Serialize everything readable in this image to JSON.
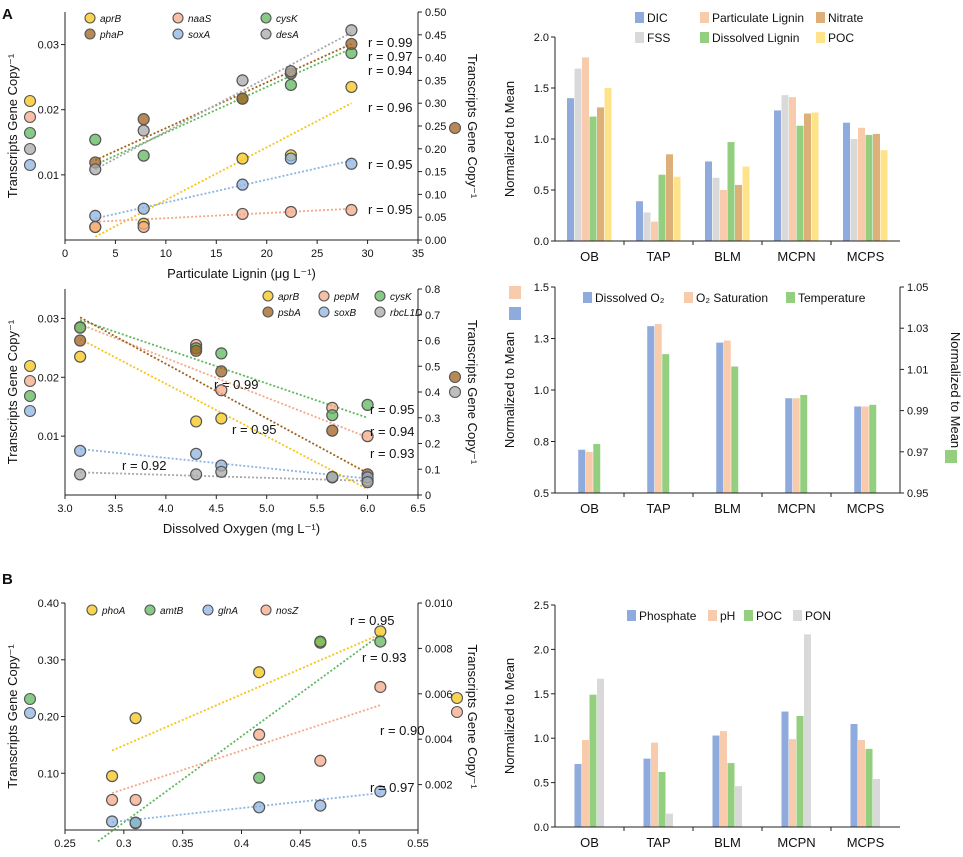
{
  "panel_labels": {
    "a": "A",
    "b": "B"
  },
  "chart_data": [
    {
      "id": "a1",
      "type": "scatter",
      "xlabel": "Particulate Lignin (μg L⁻¹)",
      "ylabel_left": "Transcripts Gene Copy⁻¹",
      "ylabel_right": "Transcripts Gene Copy⁻¹",
      "xlim": [
        0,
        35
      ],
      "ylim_left": [
        0,
        0.035
      ],
      "ylim_right": [
        0,
        0.5
      ],
      "xticks": [
        "0",
        "5",
        "10",
        "15",
        "20",
        "25",
        "30",
        "35"
      ],
      "yticks_left": [
        "0.01",
        "0.02",
        "0.03"
      ],
      "yticks_right": [
        "0.00",
        "0.05",
        "0.10",
        "0.15",
        "0.20",
        "0.25",
        "0.30",
        "0.35",
        "0.40",
        "0.45",
        "0.50"
      ],
      "series": [
        {
          "name": "aprB",
          "color": "#F5C518",
          "axis": "left",
          "x": [
            3,
            7.8,
            17.6,
            22.4,
            28.4
          ],
          "y": [
            0.002,
            0.0025,
            0.0125,
            0.013,
            0.0235
          ],
          "r": "r = 0.96",
          "fit": [
            [
              3,
              0.0005
            ],
            [
              28.4,
              0.021
            ]
          ]
        },
        {
          "name": "naaS",
          "color": "#F5A888",
          "axis": "left",
          "x": [
            3,
            7.8,
            17.6,
            22.4,
            28.4
          ],
          "y": [
            0.002,
            0.002,
            0.004,
            0.0043,
            0.0046
          ],
          "r": "r = 0.95",
          "fit": [
            [
              3,
              0.0028
            ],
            [
              28.4,
              0.0048
            ]
          ]
        },
        {
          "name": "cysK",
          "color": "#5DB85D",
          "axis": "right",
          "x": [
            3,
            7.8,
            17.6,
            22.4,
            28.4
          ],
          "y": [
            0.22,
            0.185,
            0.31,
            0.34,
            0.41
          ],
          "r": "r = 0.94",
          "fit": [
            [
              3,
              0.165
            ],
            [
              28.4,
              0.42
            ]
          ]
        },
        {
          "name": "phaP",
          "color": "#A0621E",
          "axis": "right",
          "x": [
            3,
            7.8,
            17.6,
            22.4,
            28.4
          ],
          "y": [
            0.17,
            0.265,
            0.31,
            0.365,
            0.43
          ],
          "r": "r = 0.97",
          "fit": [
            [
              3,
              0.175
            ],
            [
              28.4,
              0.43
            ]
          ]
        },
        {
          "name": "soxA",
          "color": "#8EB4E3",
          "axis": "left",
          "x": [
            3,
            7.8,
            17.6,
            22.4,
            28.4
          ],
          "y": [
            0.0037,
            0.0048,
            0.0085,
            0.0125,
            0.0117
          ],
          "r": "r = 0.95",
          "fit": [
            [
              3,
              0.0033
            ],
            [
              28.4,
              0.0122
            ]
          ]
        },
        {
          "name": "desA",
          "color": "#A8A8A8",
          "axis": "right",
          "x": [
            3,
            7.8,
            17.6,
            22.4,
            28.4
          ],
          "y": [
            0.155,
            0.24,
            0.35,
            0.37,
            0.46
          ],
          "r": "r = 0.99",
          "fit": [
            [
              3,
              0.155
            ],
            [
              28.4,
              0.455
            ]
          ]
        }
      ],
      "legend_markers_left": [
        "aprB",
        "naaS",
        "cysK",
        "desA",
        "soxA"
      ],
      "legend_markers_right": [
        "phaP"
      ]
    },
    {
      "id": "a2",
      "type": "bar",
      "ylabel": "Normalized to Mean",
      "ylim": [
        0,
        2.0
      ],
      "yticks": [
        "0.0",
        "0.5",
        "1.0",
        "1.5",
        "2.0"
      ],
      "categories": [
        "OB",
        "TAP",
        "BLM",
        "MCPN",
        "MCPS"
      ],
      "series": [
        {
          "name": "DIC",
          "color": "#8FAADC",
          "values": [
            1.4,
            0.39,
            0.78,
            1.28,
            1.16
          ]
        },
        {
          "name": "FSS",
          "color": "#D9D9D9",
          "values": [
            1.69,
            0.28,
            0.62,
            1.43,
            1.0
          ]
        },
        {
          "name": "Particulate Lignin",
          "color": "#F8CBAD",
          "values": [
            1.8,
            0.19,
            0.5,
            1.41,
            1.11
          ]
        },
        {
          "name": "Dissolved Lignin",
          "color": "#93CF7F",
          "values": [
            1.22,
            0.65,
            0.97,
            1.13,
            1.04
          ]
        },
        {
          "name": "Nitrate",
          "color": "#DDB07A",
          "values": [
            1.31,
            0.85,
            0.55,
            1.25,
            1.05
          ]
        },
        {
          "name": "POC",
          "color": "#FFE38A",
          "values": [
            1.5,
            0.63,
            0.73,
            1.26,
            0.89
          ]
        }
      ],
      "legend_order": [
        "DIC",
        "Particulate Lignin",
        "Nitrate",
        "FSS",
        "Dissolved Lignin",
        "POC"
      ]
    },
    {
      "id": "a3",
      "type": "scatter",
      "xlabel": "Dissolved Oxygen (mg L⁻¹)",
      "ylabel_left": "Transcripts Gene Copy⁻¹",
      "ylabel_right": "Transcripts Gene Copy⁻¹",
      "xlim": [
        3.0,
        6.5
      ],
      "ylim_left": [
        0,
        0.035
      ],
      "ylim_right": [
        0,
        0.8
      ],
      "xticks": [
        "3.0",
        "3.5",
        "4.0",
        "4.5",
        "5.0",
        "5.5",
        "6.0",
        "6.5"
      ],
      "yticks_left": [
        "0.01",
        "0.02",
        "0.03"
      ],
      "yticks_right": [
        "0",
        "0.1",
        "0.2",
        "0.3",
        "0.4",
        "0.5",
        "0.6",
        "0.7",
        "0.8"
      ],
      "series": [
        {
          "name": "aprB",
          "color": "#F5C518",
          "axis": "left",
          "x": [
            3.15,
            4.3,
            4.55,
            5.65,
            6.0
          ],
          "y": [
            0.0235,
            0.0125,
            0.013,
            0.003,
            0.0025
          ],
          "r": "r = 0.99",
          "fit": [
            [
              3.15,
              0.0265
            ],
            [
              6.0,
              0.001
            ]
          ]
        },
        {
          "name": "pepM",
          "color": "#F5A888",
          "axis": "left",
          "x": [
            3.15,
            4.3,
            4.55,
            5.65,
            6.0
          ],
          "y": [
            0.0285,
            0.0255,
            0.0178,
            0.0148,
            0.01
          ],
          "r": "r = 0.94",
          "fit": [
            [
              3.15,
              0.029
            ],
            [
              6.0,
              0.0098
            ]
          ]
        },
        {
          "name": "cysK",
          "color": "#5DB85D",
          "axis": "right",
          "x": [
            3.15,
            4.3,
            4.55,
            5.65,
            6.0
          ],
          "y": [
            0.65,
            0.57,
            0.55,
            0.31,
            0.35
          ],
          "r": "r = 0.95",
          "fit": [
            [
              3.15,
              0.68
            ],
            [
              6.0,
              0.3
            ]
          ]
        },
        {
          "name": "psbA",
          "color": "#A0621E",
          "axis": "right",
          "x": [
            3.15,
            4.3,
            4.55,
            5.65,
            6.0
          ],
          "y": [
            0.6,
            0.56,
            0.48,
            0.25,
            0.08
          ],
          "r": "r = 0.93",
          "fit": [
            [
              3.15,
              0.69
            ],
            [
              6.0,
              0.085
            ]
          ]
        },
        {
          "name": "soxB",
          "color": "#8EB4E3",
          "axis": "left",
          "x": [
            3.15,
            4.3,
            4.55,
            5.65,
            6.0
          ],
          "y": [
            0.0075,
            0.007,
            0.005,
            0.003,
            0.003
          ],
          "r": "r = 0.95",
          "fit": [
            [
              3.15,
              0.0078
            ],
            [
              6.0,
              0.0028
            ]
          ]
        },
        {
          "name": "rbcL1D",
          "color": "#A8A8A8",
          "axis": "right",
          "x": [
            3.15,
            4.3,
            4.55,
            5.65,
            6.0
          ],
          "y": [
            0.08,
            0.08,
            0.09,
            0.07,
            0.05
          ],
          "r": "r = 0.92",
          "fit": [
            [
              3.15,
              0.088
            ],
            [
              6.0,
              0.055
            ]
          ]
        }
      ],
      "legend_markers_left": [
        "aprB",
        "pepM",
        "cysK",
        "soxB"
      ],
      "legend_markers_right": [
        "psbA",
        "rbcL1D"
      ]
    },
    {
      "id": "a4",
      "type": "bar",
      "ylabel_left": "Normalized to Mean",
      "ylabel_right": "Normalized to Mean",
      "ylim_left": [
        0.5,
        1.5
      ],
      "ylim_right": [
        0.95,
        1.05
      ],
      "yticks_left": [
        "0.5",
        "0.8",
        "1.0",
        "1.3",
        "1.5"
      ],
      "yticks_right": [
        "0.95",
        "0.97",
        "0.99",
        "1.01",
        "1.03",
        "1.05"
      ],
      "categories": [
        "OB",
        "TAP",
        "BLM",
        "MCPN",
        "MCPS"
      ],
      "series": [
        {
          "name": "Dissolved O₂",
          "color": "#8FAADC",
          "axis": "left",
          "values": [
            0.71,
            1.31,
            1.23,
            0.96,
            0.92
          ]
        },
        {
          "name": "O₂ Saturation",
          "color": "#F8CBAD",
          "axis": "left",
          "values": [
            0.7,
            1.32,
            1.24,
            0.96,
            0.92
          ]
        },
        {
          "name": "Temperature",
          "color": "#93CF7F",
          "axis": "right",
          "values": [
            0.9738,
            1.0174,
            1.0114,
            0.9976,
            0.9928
          ]
        }
      ]
    },
    {
      "id": "b1",
      "type": "scatter",
      "xlabel": "Phosphate (μg L⁻¹)",
      "ylabel_left": "Transcripts Gene Copy⁻¹",
      "ylabel_right": "Transcripts Gene Copy⁻¹",
      "xlim": [
        0.25,
        0.55
      ],
      "ylim_left": [
        0,
        0.4
      ],
      "ylim_right": [
        0,
        0.01
      ],
      "xticks": [
        "0.25",
        "0.3",
        "0.35",
        "0.4",
        "0.45",
        "0.5",
        "0.55"
      ],
      "yticks_left": [
        "0.10",
        "0.20",
        "0.30",
        "0.40"
      ],
      "yticks_right": [
        "0.002",
        "0.004",
        "0.006",
        "0.008",
        "0.010"
      ],
      "series": [
        {
          "name": "phoA",
          "color": "#F5C518",
          "axis": "left",
          "x": [
            0.29,
            0.31,
            0.415,
            0.467,
            0.518
          ],
          "y": [
            0.095,
            0.197,
            0.278,
            0.33,
            0.35
          ],
          "r": "r = 0.95",
          "fit": [
            [
              0.29,
              0.14
            ],
            [
              0.518,
              0.345
            ]
          ]
        },
        {
          "name": "amtB",
          "color": "#5DB85D",
          "axis": "right",
          "x": [
            0.31,
            0.415,
            0.467,
            0.518
          ],
          "y": [
            0.0003,
            0.0023,
            0.0083,
            0.0083
          ],
          "r": "r = 0.93",
          "fit": [
            [
              0.278,
              -0.0005
            ],
            [
              0.518,
              0.0086
            ]
          ]
        },
        {
          "name": "glnA",
          "color": "#8EB4E3",
          "axis": "left",
          "x": [
            0.29,
            0.31,
            0.415,
            0.467,
            0.518
          ],
          "y": [
            0.015,
            0.013,
            0.04,
            0.043,
            0.068
          ],
          "r": "r = 0.97",
          "fit": [
            [
              0.29,
              0.014
            ],
            [
              0.518,
              0.065
            ]
          ]
        },
        {
          "name": "nosZ",
          "color": "#F5A888",
          "axis": "left",
          "x": [
            0.29,
            0.31,
            0.415,
            0.467,
            0.518
          ],
          "y": [
            0.053,
            0.053,
            0.168,
            0.122,
            0.252
          ],
          "r": "r = 0.90",
          "fit": [
            [
              0.29,
              0.065
            ],
            [
              0.518,
              0.22
            ]
          ]
        }
      ],
      "legend_markers_left": [
        "amtB",
        "glnA"
      ],
      "legend_markers_right": [
        "phoA",
        "nosZ"
      ]
    },
    {
      "id": "b2",
      "type": "bar",
      "ylabel": "Normalized to Mean",
      "ylim": [
        0,
        2.5
      ],
      "yticks": [
        "0.0",
        "0.5",
        "1.0",
        "1.5",
        "2.0",
        "2.5"
      ],
      "categories": [
        "OB",
        "TAP",
        "BLM",
        "MCPN",
        "MCPS"
      ],
      "series": [
        {
          "name": "Phosphate",
          "color": "#8FAADC",
          "values": [
            0.71,
            0.77,
            1.03,
            1.3,
            1.16
          ]
        },
        {
          "name": "pH",
          "color": "#F8CBAD",
          "values": [
            0.98,
            0.95,
            1.08,
            0.99,
            0.98
          ]
        },
        {
          "name": "POC",
          "color": "#93CF7F",
          "values": [
            1.49,
            0.62,
            0.72,
            1.25,
            0.88
          ]
        },
        {
          "name": "PON",
          "color": "#D9D9D9",
          "values": [
            1.67,
            0.15,
            0.46,
            2.17,
            0.54
          ]
        }
      ]
    }
  ]
}
